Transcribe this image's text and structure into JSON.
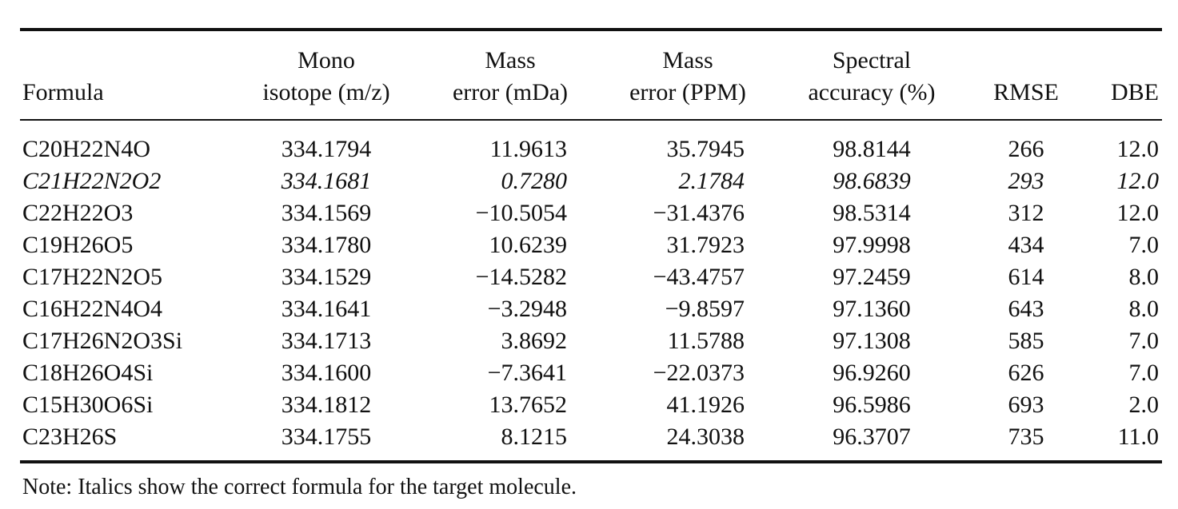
{
  "table": {
    "headers": [
      [
        "Formula"
      ],
      [
        "Mono",
        "isotope (m/z)"
      ],
      [
        "Mass",
        "error (mDa)"
      ],
      [
        "Mass",
        "error (PPM)"
      ],
      [
        "Spectral",
        "accuracy (%)"
      ],
      [
        "RMSE"
      ],
      [
        "DBE"
      ]
    ],
    "rows": [
      {
        "cells": [
          "C20H22N4O",
          "334.1794",
          "11.9613",
          "35.7945",
          "98.8144",
          "266",
          "12.0"
        ],
        "italic": false
      },
      {
        "cells": [
          "C21H22N2O2",
          "334.1681",
          "0.7280",
          "2.1784",
          "98.6839",
          "293",
          "12.0"
        ],
        "italic": true
      },
      {
        "cells": [
          "C22H22O3",
          "334.1569",
          "−10.5054",
          "−31.4376",
          "98.5314",
          "312",
          "12.0"
        ],
        "italic": false
      },
      {
        "cells": [
          "C19H26O5",
          "334.1780",
          "10.6239",
          "31.7923",
          "97.9998",
          "434",
          "7.0"
        ],
        "italic": false
      },
      {
        "cells": [
          "C17H22N2O5",
          "334.1529",
          "−14.5282",
          "−43.4757",
          "97.2459",
          "614",
          "8.0"
        ],
        "italic": false
      },
      {
        "cells": [
          "C16H22N4O4",
          "334.1641",
          "−3.2948",
          "−9.8597",
          "97.1360",
          "643",
          "8.0"
        ],
        "italic": false
      },
      {
        "cells": [
          "C17H26N2O3Si",
          "334.1713",
          "3.8692",
          "11.5788",
          "97.1308",
          "585",
          "7.0"
        ],
        "italic": false
      },
      {
        "cells": [
          "C18H26O4Si",
          "334.1600",
          "−7.3641",
          "−22.0373",
          "96.9260",
          "626",
          "7.0"
        ],
        "italic": false
      },
      {
        "cells": [
          "C15H30O6Si",
          "334.1812",
          "13.7652",
          "41.1926",
          "96.5986",
          "693",
          "2.0"
        ],
        "italic": false
      },
      {
        "cells": [
          "C23H26S",
          "334.1755",
          "8.1215",
          "24.3038",
          "96.3707",
          "735",
          "11.0"
        ],
        "italic": false
      }
    ],
    "note": "Note: Italics show the correct formula for the target molecule."
  }
}
